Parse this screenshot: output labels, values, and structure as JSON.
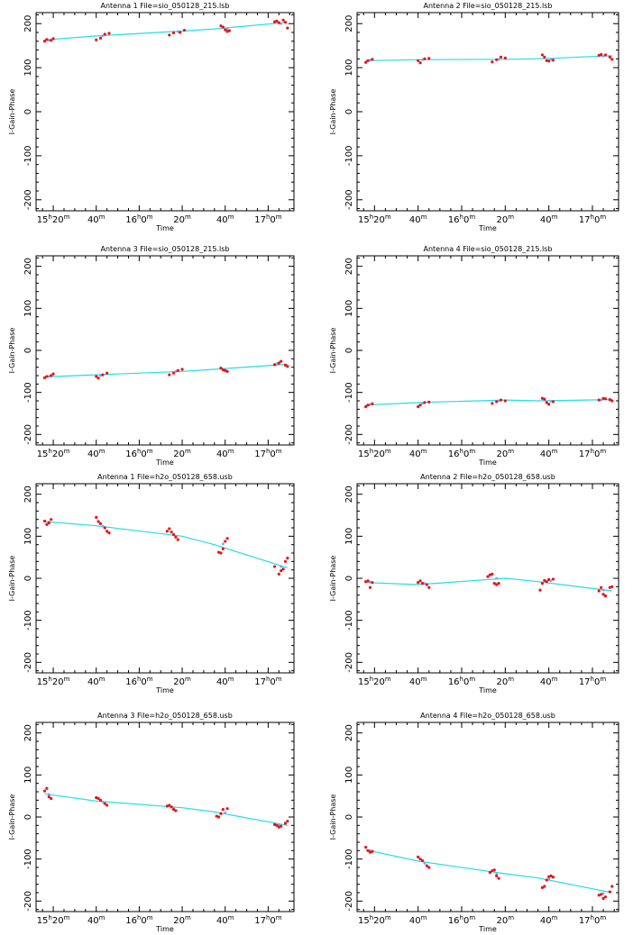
{
  "colors": {
    "fit_line": "#22dde6",
    "points": "#ee1111",
    "points_secondary": "#7aa0ff",
    "axes": "#000000"
  },
  "chart_data": [
    {
      "type": "scatter",
      "title": "Antenna  1   File=sio_050128_215.lsb",
      "xlabel": "Time",
      "ylabel": "I-Gain-Phase",
      "xlim": [
        "15:12",
        "17:12"
      ],
      "ylim": [
        -225,
        225
      ],
      "x_tick_labels": [
        {
          "x": "15:20",
          "label": "15h20m"
        },
        {
          "x": "15:40",
          "label": "40m"
        },
        {
          "x": "16:00",
          "label": "16h0m"
        },
        {
          "x": "16:20",
          "label": "20m"
        },
        {
          "x": "16:40",
          "label": "40m"
        },
        {
          "x": "17:00",
          "label": "17h0m"
        }
      ],
      "y_tick_labels": [
        {
          "y": 200,
          "label": "200"
        },
        {
          "y": 100,
          "label": "100"
        },
        {
          "y": 0,
          "label": "0"
        },
        {
          "y": -100,
          "label": "-100"
        },
        {
          "y": -200,
          "label": "-200"
        }
      ],
      "fit_line": {
        "x": [
          "15:16",
          "15:40",
          "16:20",
          "16:35",
          "17:09"
        ],
        "y": [
          163,
          172,
          183,
          188,
          203
        ]
      },
      "points": {
        "x": [
          "15:16",
          "15:17",
          "15:19",
          "15:20",
          "15:40",
          "15:42",
          "15:44",
          "15:46",
          "16:14",
          "16:16",
          "16:19",
          "16:21",
          "16:38",
          "16:39",
          "16:40",
          "16:41",
          "16:42",
          "17:03",
          "17:04",
          "17:05",
          "17:07",
          "17:08",
          "17:09"
        ],
        "y": [
          160,
          164,
          162,
          166,
          163,
          167,
          176,
          178,
          174,
          179,
          180,
          185,
          195,
          192,
          186,
          182,
          184,
          204,
          206,
          202,
          208,
          203,
          190
        ]
      },
      "points_secondary": {
        "x": [
          "15:18",
          "15:43",
          "16:18",
          "16:41",
          "17:06"
        ],
        "y": [
          162,
          172,
          182,
          188,
          200
        ]
      }
    },
    {
      "type": "scatter",
      "title": "Antenna  2   File=sio_050128_215.lsb",
      "xlabel": "Time",
      "ylabel": "I-Gain-Phase",
      "xlim": [
        "15:12",
        "17:12"
      ],
      "ylim": [
        -225,
        225
      ],
      "x_tick_labels": [
        {
          "x": "15:20",
          "label": "15h20m"
        },
        {
          "x": "15:40",
          "label": "40m"
        },
        {
          "x": "16:00",
          "label": "16h0m"
        },
        {
          "x": "16:20",
          "label": "20m"
        },
        {
          "x": "16:40",
          "label": "40m"
        },
        {
          "x": "17:00",
          "label": "17h0m"
        }
      ],
      "y_tick_labels": [
        {
          "y": 200,
          "label": "200"
        },
        {
          "y": 100,
          "label": "100"
        },
        {
          "y": 0,
          "label": "0"
        },
        {
          "y": -100,
          "label": "-100"
        },
        {
          "y": -200,
          "label": "-200"
        }
      ],
      "fit_line": {
        "x": [
          "15:16",
          "15:40",
          "16:20",
          "16:35",
          "17:09"
        ],
        "y": [
          116,
          118,
          119,
          120,
          127
        ]
      },
      "points": {
        "x": [
          "15:16",
          "15:17",
          "15:19",
          "15:40",
          "15:41",
          "15:43",
          "15:45",
          "16:14",
          "16:16",
          "16:18",
          "16:20",
          "16:37",
          "16:38",
          "16:39",
          "16:40",
          "16:42",
          "17:03",
          "17:04",
          "17:06",
          "17:08",
          "17:09"
        ],
        "y": [
          112,
          116,
          119,
          116,
          111,
          120,
          121,
          113,
          118,
          124,
          122,
          129,
          124,
          116,
          115,
          117,
          128,
          130,
          129,
          124,
          119
        ]
      },
      "points_secondary": {
        "x": [
          "15:18",
          "15:42",
          "16:17",
          "16:41",
          "17:05"
        ],
        "y": [
          117,
          118,
          119,
          119,
          126
        ]
      }
    },
    {
      "type": "scatter",
      "title": "Antenna  3   File=sio_050128_215.lsb",
      "xlabel": "Time",
      "ylabel": "I-Gain-Phase",
      "xlim": [
        "15:12",
        "17:12"
      ],
      "ylim": [
        -225,
        225
      ],
      "x_tick_labels": [
        {
          "x": "15:20",
          "label": "15h20m"
        },
        {
          "x": "15:40",
          "label": "40m"
        },
        {
          "x": "16:00",
          "label": "16h0m"
        },
        {
          "x": "16:20",
          "label": "20m"
        },
        {
          "x": "16:40",
          "label": "40m"
        },
        {
          "x": "17:00",
          "label": "17h0m"
        }
      ],
      "y_tick_labels": [
        {
          "y": 200,
          "label": "200"
        },
        {
          "y": 100,
          "label": "100"
        },
        {
          "y": 0,
          "label": "0"
        },
        {
          "y": -100,
          "label": "-100"
        },
        {
          "y": -200,
          "label": "-200"
        }
      ],
      "fit_line": {
        "x": [
          "15:16",
          "15:40",
          "16:20",
          "16:35",
          "17:09"
        ],
        "y": [
          -63,
          -58,
          -50,
          -45,
          -33
        ]
      },
      "points": {
        "x": [
          "15:16",
          "15:17",
          "15:19",
          "15:20",
          "15:40",
          "15:41",
          "15:43",
          "15:45",
          "16:14",
          "16:16",
          "16:18",
          "16:20",
          "16:38",
          "16:39",
          "16:40",
          "16:41",
          "17:03",
          "17:05",
          "17:06",
          "17:08",
          "17:09"
        ],
        "y": [
          -65,
          -62,
          -60,
          -56,
          -62,
          -66,
          -58,
          -54,
          -58,
          -54,
          -48,
          -45,
          -42,
          -46,
          -48,
          -50,
          -34,
          -30,
          -26,
          -35,
          -38
        ]
      },
      "points_secondary": {
        "x": [
          "15:18",
          "15:42",
          "16:17",
          "16:40",
          "17:04"
        ],
        "y": [
          -62,
          -60,
          -50,
          -46,
          -32
        ]
      }
    },
    {
      "type": "scatter",
      "title": "Antenna  4   File=sio_050128_215.lsb",
      "xlabel": "Time",
      "ylabel": "I-Gain-Phase",
      "xlim": [
        "15:12",
        "17:12"
      ],
      "ylim": [
        -225,
        225
      ],
      "x_tick_labels": [
        {
          "x": "15:20",
          "label": "15h20m"
        },
        {
          "x": "15:40",
          "label": "40m"
        },
        {
          "x": "16:00",
          "label": "16h0m"
        },
        {
          "x": "16:20",
          "label": "20m"
        },
        {
          "x": "16:40",
          "label": "40m"
        },
        {
          "x": "17:00",
          "label": "17h0m"
        }
      ],
      "y_tick_labels": [
        {
          "y": 200,
          "label": "200"
        },
        {
          "y": 100,
          "label": "100"
        },
        {
          "y": 0,
          "label": "0"
        },
        {
          "y": -100,
          "label": "-100"
        },
        {
          "y": -200,
          "label": "-200"
        }
      ],
      "fit_line": {
        "x": [
          "15:16",
          "15:40",
          "16:20",
          "16:35",
          "17:09"
        ],
        "y": [
          -130,
          -124,
          -118,
          -120,
          -117
        ]
      },
      "points": {
        "x": [
          "15:16",
          "15:17",
          "15:19",
          "15:40",
          "15:41",
          "15:43",
          "15:45",
          "16:14",
          "16:16",
          "16:18",
          "16:20",
          "16:37",
          "16:38",
          "16:39",
          "16:40",
          "16:42",
          "17:03",
          "17:05",
          "17:06",
          "17:08",
          "17:09"
        ],
        "y": [
          -134,
          -130,
          -127,
          -134,
          -130,
          -124,
          -123,
          -126,
          -122,
          -118,
          -120,
          -114,
          -116,
          -124,
          -128,
          -122,
          -118,
          -114,
          -115,
          -117,
          -120
        ]
      },
      "points_secondary": {
        "x": [
          "15:18",
          "15:42",
          "16:17",
          "16:41",
          "17:04"
        ],
        "y": [
          -129,
          -126,
          -120,
          -121,
          -118
        ]
      }
    },
    {
      "type": "scatter",
      "title": "Antenna  1   File=h2o_050128_658.usb",
      "xlabel": "Time",
      "ylabel": "I-Gain-Phase",
      "xlim": [
        "15:12",
        "17:12"
      ],
      "ylim": [
        -225,
        225
      ],
      "x_tick_labels": [
        {
          "x": "15:20",
          "label": "15h20m"
        },
        {
          "x": "15:40",
          "label": "40m"
        },
        {
          "x": "16:00",
          "label": "16h0m"
        },
        {
          "x": "16:20",
          "label": "20m"
        },
        {
          "x": "16:40",
          "label": "40m"
        },
        {
          "x": "17:00",
          "label": "17h0m"
        }
      ],
      "y_tick_labels": [
        {
          "y": 200,
          "label": "200"
        },
        {
          "y": 100,
          "label": "100"
        },
        {
          "y": 0,
          "label": "0"
        },
        {
          "y": -100,
          "label": "-100"
        },
        {
          "y": -200,
          "label": "-200"
        }
      ],
      "fit_line": {
        "x": [
          "15:16",
          "15:40",
          "16:20",
          "16:35",
          "17:09"
        ],
        "y": [
          135,
          125,
          100,
          80,
          25
        ]
      },
      "points": {
        "x": [
          "15:16",
          "15:17",
          "15:18",
          "15:19",
          "15:40",
          "15:41",
          "15:42",
          "15:44",
          "15:45",
          "15:46",
          "16:13",
          "16:14",
          "16:15",
          "16:16",
          "16:17",
          "16:18",
          "16:37",
          "16:38",
          "16:39",
          "16:40",
          "16:41",
          "17:03",
          "17:05",
          "17:06",
          "17:07",
          "17:08",
          "17:09"
        ],
        "y": [
          136,
          128,
          132,
          140,
          145,
          135,
          130,
          120,
          112,
          108,
          112,
          118,
          110,
          104,
          98,
          92,
          62,
          60,
          70,
          88,
          95,
          28,
          10,
          18,
          22,
          40,
          48
        ]
      },
      "points_secondary": {
        "x": [
          "15:18",
          "15:43",
          "16:16",
          "16:39",
          "17:06"
        ],
        "y": [
          134,
          124,
          104,
          82,
          28
        ]
      }
    },
    {
      "type": "scatter",
      "title": "Antenna  2   File=h2o_050128_658.usb",
      "xlabel": "Time",
      "ylabel": "I-Gain-Phase",
      "xlim": [
        "15:12",
        "17:12"
      ],
      "ylim": [
        -225,
        225
      ],
      "x_tick_labels": [
        {
          "x": "15:20",
          "label": "15h20m"
        },
        {
          "x": "15:40",
          "label": "40m"
        },
        {
          "x": "16:00",
          "label": "16h0m"
        },
        {
          "x": "16:20",
          "label": "20m"
        },
        {
          "x": "16:40",
          "label": "40m"
        },
        {
          "x": "17:00",
          "label": "17h0m"
        }
      ],
      "y_tick_labels": [
        {
          "y": 200,
          "label": "200"
        },
        {
          "y": 100,
          "label": "100"
        },
        {
          "y": 0,
          "label": "0"
        },
        {
          "y": -100,
          "label": "-100"
        },
        {
          "y": -200,
          "label": "-200"
        }
      ],
      "fit_line": {
        "x": [
          "15:16",
          "15:40",
          "16:20",
          "16:35",
          "17:09"
        ],
        "y": [
          -10,
          -15,
          0,
          -8,
          -30
        ]
      },
      "points": {
        "x": [
          "15:16",
          "15:17",
          "15:18",
          "15:19",
          "15:40",
          "15:41",
          "15:42",
          "15:44",
          "15:45",
          "16:12",
          "16:13",
          "16:14",
          "16:15",
          "16:16",
          "16:17",
          "16:36",
          "16:37",
          "16:38",
          "16:39",
          "16:40",
          "16:42",
          "17:03",
          "17:04",
          "17:05",
          "17:06",
          "17:08",
          "17:09"
        ],
        "y": [
          -8,
          -6,
          -22,
          -10,
          -10,
          -6,
          -12,
          -15,
          -22,
          4,
          8,
          10,
          -12,
          -15,
          -12,
          -28,
          -12,
          -5,
          -8,
          -3,
          -2,
          -30,
          -22,
          -38,
          -42,
          -22,
          -20
        ]
      },
      "points_secondary": {
        "x": [
          "15:18",
          "15:43",
          "16:16",
          "16:41",
          "17:05"
        ],
        "y": [
          -9,
          -12,
          0,
          -6,
          -28
        ]
      }
    },
    {
      "type": "scatter",
      "title": "Antenna  3   File=h2o_050128_658.usb",
      "xlabel": "Time",
      "ylabel": "I-Gain-Phase",
      "xlim": [
        "15:12",
        "17:12"
      ],
      "ylim": [
        -225,
        225
      ],
      "x_tick_labels": [
        {
          "x": "15:20",
          "label": "15h20m"
        },
        {
          "x": "15:40",
          "label": "40m"
        },
        {
          "x": "16:00",
          "label": "16h0m"
        },
        {
          "x": "16:20",
          "label": "20m"
        },
        {
          "x": "16:40",
          "label": "40m"
        },
        {
          "x": "17:00",
          "label": "17h0m"
        }
      ],
      "y_tick_labels": [
        {
          "y": 200,
          "label": "200"
        },
        {
          "y": 100,
          "label": "100"
        },
        {
          "y": 0,
          "label": "0"
        },
        {
          "y": -100,
          "label": "-100"
        },
        {
          "y": -200,
          "label": "-200"
        }
      ],
      "fit_line": {
        "x": [
          "15:16",
          "15:40",
          "16:20",
          "16:35",
          "17:09"
        ],
        "y": [
          55,
          38,
          22,
          12,
          -20
        ]
      },
      "points": {
        "x": [
          "15:16",
          "15:17",
          "15:18",
          "15:19",
          "15:40",
          "15:41",
          "15:42",
          "15:44",
          "15:45",
          "16:13",
          "16:14",
          "16:15",
          "16:16",
          "16:17",
          "16:36",
          "16:37",
          "16:38",
          "16:39",
          "16:41",
          "17:03",
          "17:04",
          "17:05",
          "17:06",
          "17:08",
          "17:09"
        ],
        "y": [
          62,
          68,
          48,
          44,
          46,
          44,
          40,
          32,
          28,
          26,
          28,
          24,
          18,
          15,
          2,
          0,
          8,
          18,
          20,
          -18,
          -20,
          -24,
          -22,
          -15,
          -10
        ]
      },
      "points_secondary": {
        "x": [
          "15:18",
          "15:43",
          "16:16",
          "16:40",
          "17:05"
        ],
        "y": [
          54,
          36,
          22,
          10,
          -18
        ]
      }
    },
    {
      "type": "scatter",
      "title": "Antenna  4   File=h2o_050128_658.usb",
      "xlabel": "Time",
      "ylabel": "I-Gain-Phase",
      "xlim": [
        "15:12",
        "17:12"
      ],
      "ylim": [
        -225,
        225
      ],
      "x_tick_labels": [
        {
          "x": "15:20",
          "label": "15h20m"
        },
        {
          "x": "15:40",
          "label": "40m"
        },
        {
          "x": "16:00",
          "label": "16h0m"
        },
        {
          "x": "16:20",
          "label": "20m"
        },
        {
          "x": "16:40",
          "label": "40m"
        },
        {
          "x": "17:00",
          "label": "17h0m"
        }
      ],
      "y_tick_labels": [
        {
          "y": 200,
          "label": "200"
        },
        {
          "y": 100,
          "label": "100"
        },
        {
          "y": 0,
          "label": "0"
        },
        {
          "y": -100,
          "label": "-100"
        },
        {
          "y": -200,
          "label": "-200"
        }
      ],
      "fit_line": {
        "x": [
          "15:16",
          "15:40",
          "16:20",
          "16:35",
          "17:09"
        ],
        "y": [
          -78,
          -105,
          -135,
          -145,
          -180
        ]
      },
      "points": {
        "x": [
          "15:16",
          "15:17",
          "15:18",
          "15:19",
          "15:40",
          "15:41",
          "15:42",
          "15:44",
          "15:45",
          "16:13",
          "16:14",
          "16:15",
          "16:16",
          "16:17",
          "16:37",
          "16:38",
          "16:39",
          "16:40",
          "16:41",
          "16:42",
          "17:03",
          "17:04",
          "17:05",
          "17:06",
          "17:08",
          "17:09"
        ],
        "y": [
          -72,
          -80,
          -84,
          -82,
          -95,
          -100,
          -104,
          -116,
          -120,
          -132,
          -128,
          -126,
          -140,
          -146,
          -168,
          -165,
          -150,
          -142,
          -140,
          -143,
          -186,
          -184,
          -194,
          -190,
          -178,
          -165
        ]
      },
      "points_secondary": {
        "x": [
          "15:18",
          "15:43",
          "16:16",
          "16:40",
          "17:05"
        ],
        "y": [
          -80,
          -110,
          -136,
          -148,
          -182
        ]
      }
    }
  ]
}
